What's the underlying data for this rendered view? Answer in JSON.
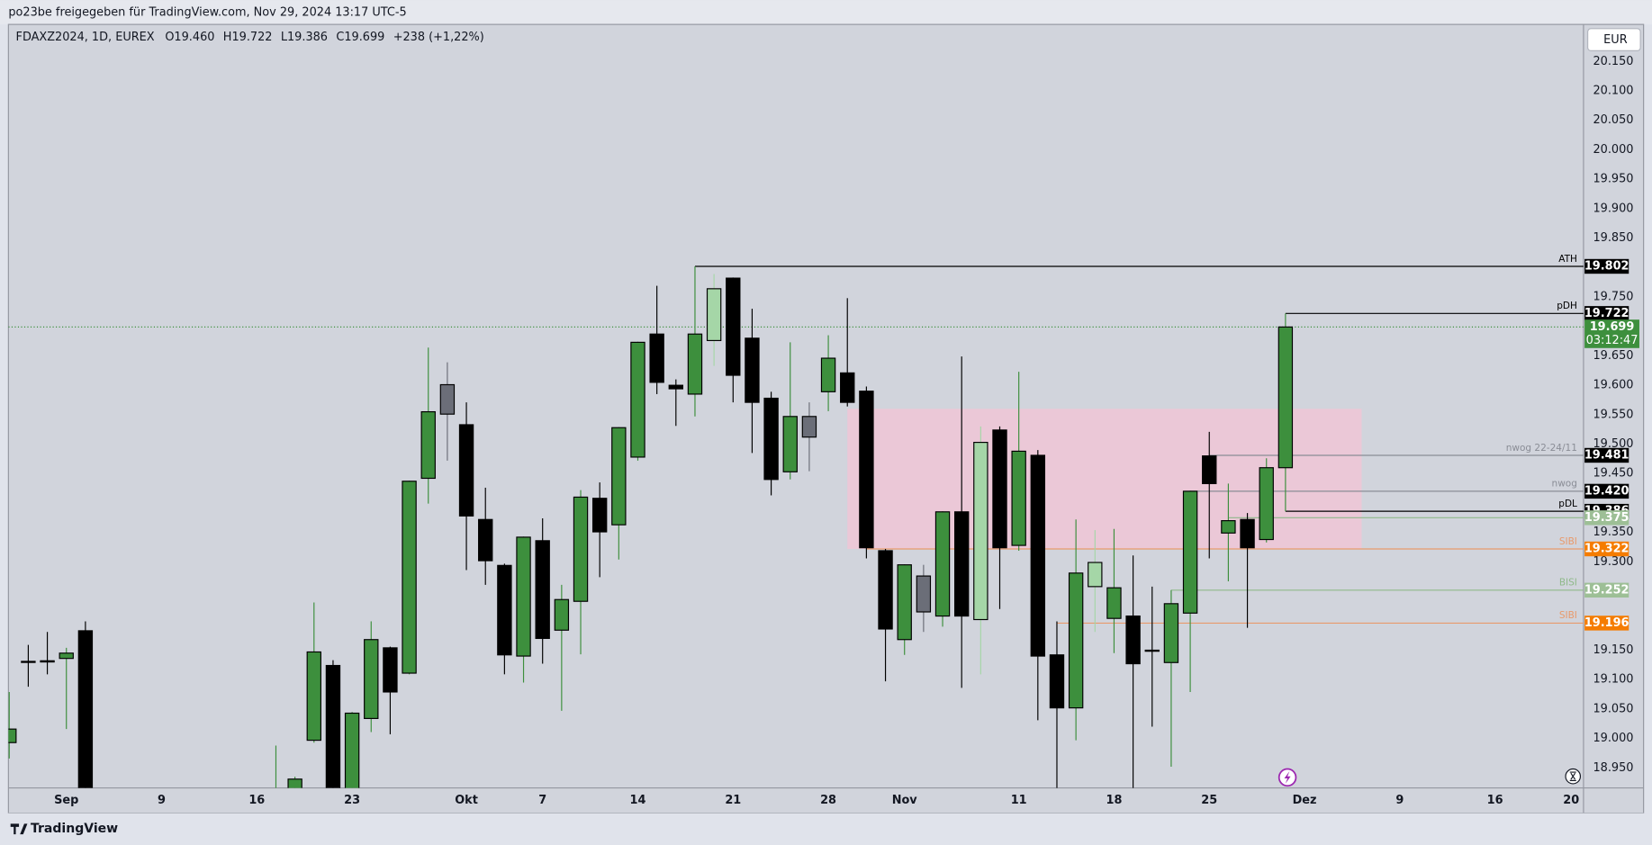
{
  "chart_data": {
    "type": "candlestick",
    "title": "po23be freigegeben für TradingView.com, Nov 29, 2024 13:17 UTC-5",
    "symbol": "FDAXZ2024, 1D, EUREX",
    "legend": [
      "O19.460",
      "H19.722",
      "L19.386",
      "C19.699",
      "+238 (+1,22%)"
    ],
    "currency": "EUR",
    "brand": "TradingView",
    "categories": [
      null,
      null,
      null,
      "Sep",
      null,
      null,
      null,
      null,
      "9",
      null,
      null,
      null,
      null,
      "16",
      null,
      null,
      null,
      null,
      "23",
      null,
      null,
      null,
      null,
      null,
      "Okt",
      null,
      null,
      null,
      "7",
      null,
      null,
      null,
      null,
      "14",
      null,
      null,
      null,
      null,
      "21",
      null,
      null,
      null,
      null,
      "28",
      null,
      null,
      null,
      "Nov",
      null,
      null,
      null,
      null,
      null,
      "11",
      null,
      null,
      null,
      null,
      "18",
      null,
      null,
      null,
      null,
      "25",
      null,
      null,
      null,
      null,
      "Dez",
      null,
      null,
      null,
      null,
      "9",
      null,
      null,
      null,
      null,
      "16",
      null,
      null,
      null,
      "20"
    ],
    "open": [
      18.993,
      19.131,
      19.13,
      19.136,
      19.183,
      null,
      null,
      null,
      null,
      null,
      null,
      null,
      null,
      null,
      18.85,
      18.9,
      18.997,
      19.124,
      18.9,
      19.034,
      19.154,
      19.111,
      19.442,
      19.601,
      19.533,
      19.372,
      19.294,
      19.14,
      19.336,
      19.184,
      19.233,
      19.408,
      19.363,
      19.478,
      19.687,
      19.6,
      19.585,
      19.676,
      19.782,
      19.68,
      19.578,
      19.453,
      19.547,
      19.589,
      19.621,
      19.59,
      19.319,
      19.168,
      19.276,
      19.208,
      19.385,
      19.202,
      19.524,
      19.328,
      19.481,
      19.142,
      19.052,
      19.258,
      19.204,
      19.208,
      19.15,
      19.129,
      19.213,
      19.48,
      19.349,
      19.372,
      19.338,
      19.46,
      null,
      null,
      null,
      null,
      null,
      null,
      null,
      null,
      null,
      null,
      null,
      null,
      null,
      null,
      null
    ],
    "high": [
      19.079,
      19.159,
      19.181,
      19.154,
      19.199,
      null,
      null,
      null,
      null,
      null,
      null,
      null,
      null,
      null,
      18.988,
      18.935,
      19.231,
      19.133,
      19.045,
      19.199,
      19.156,
      19.438,
      19.664,
      19.639,
      19.571,
      19.426,
      19.297,
      19.343,
      19.374,
      19.261,
      19.422,
      19.435,
      19.529,
      19.674,
      19.769,
      19.61,
      19.802,
      19.789,
      19.783,
      19.73,
      19.589,
      19.673,
      19.571,
      19.685,
      19.748,
      19.598,
      19.322,
      19.296,
      19.295,
      19.386,
      19.649,
      19.53,
      19.53,
      19.623,
      19.49,
      19.199,
      19.372,
      19.354,
      19.356,
      19.311,
      19.258,
      19.252,
      19.421,
      19.521,
      19.433,
      19.383,
      19.476,
      19.722,
      null,
      null,
      null,
      null,
      null,
      null,
      null,
      null,
      null,
      null,
      null,
      null,
      null,
      null,
      null
    ],
    "low": [
      18.966,
      19.088,
      19.109,
      19.016,
      18.88,
      null,
      null,
      null,
      null,
      null,
      null,
      null,
      null,
      null,
      18.8,
      18.88,
      18.993,
      18.87,
      18.88,
      19.011,
      19.007,
      19.109,
      19.399,
      19.472,
      19.286,
      19.261,
      19.109,
      19.095,
      19.127,
      19.047,
      19.143,
      19.274,
      19.304,
      19.472,
      19.585,
      19.531,
      19.547,
      19.633,
      19.571,
      19.485,
      19.413,
      19.44,
      19.454,
      19.556,
      19.564,
      19.306,
      19.097,
      19.142,
      19.181,
      19.19,
      19.086,
      19.109,
      19.22,
      19.319,
      19.031,
      18.9,
      18.997,
      19.181,
      19.145,
      18.9,
      19.02,
      18.952,
      19.079,
      19.306,
      19.267,
      19.188,
      19.333,
      19.386,
      null,
      null,
      null,
      null,
      null,
      null,
      null,
      null,
      null,
      null,
      null,
      null,
      null,
      null,
      null
    ],
    "close": [
      19.016,
      19.131,
      19.132,
      19.145,
      18.9,
      null,
      null,
      null,
      null,
      null,
      null,
      null,
      null,
      null,
      18.88,
      18.931,
      19.147,
      18.89,
      19.043,
      19.168,
      19.079,
      19.437,
      19.555,
      19.551,
      19.378,
      19.302,
      19.142,
      19.342,
      19.17,
      19.236,
      19.41,
      19.351,
      19.528,
      19.673,
      19.605,
      19.594,
      19.687,
      19.764,
      19.617,
      19.571,
      19.44,
      19.547,
      19.512,
      19.646,
      19.571,
      19.324,
      19.186,
      19.295,
      19.215,
      19.385,
      19.208,
      19.503,
      19.324,
      19.488,
      19.14,
      19.052,
      19.281,
      19.299,
      19.256,
      19.127,
      19.149,
      19.229,
      19.42,
      19.433,
      19.37,
      19.324,
      19.46,
      19.699,
      null,
      null,
      null,
      null,
      null,
      null,
      null,
      null,
      null,
      null,
      null,
      null,
      null,
      null,
      null
    ],
    "colors": [
      "#3d8f3d",
      "#000000",
      "#000000",
      "#3d8f3d",
      "#000000",
      null,
      null,
      null,
      null,
      null,
      null,
      null,
      null,
      null,
      "#3d8f3d",
      "#3d8f3d",
      "#3d8f3d",
      "#000000",
      "#3d8f3d",
      "#3d8f3d",
      "#000000",
      "#3d8f3d",
      "#3d8f3d",
      "#6b6e78",
      "#000000",
      "#000000",
      "#000000",
      "#3d8f3d",
      "#000000",
      "#3d8f3d",
      "#3d8f3d",
      "#000000",
      "#3d8f3d",
      "#3d8f3d",
      "#000000",
      "#000000",
      "#3d8f3d",
      "#a5d6a7",
      "#000000",
      "#000000",
      "#000000",
      "#3d8f3d",
      "#6b6e78",
      "#3d8f3d",
      "#000000",
      "#000000",
      "#000000",
      "#3d8f3d",
      "#6b6e78",
      "#3d8f3d",
      "#000000",
      "#a5d6a7",
      "#000000",
      "#3d8f3d",
      "#000000",
      "#000000",
      "#3d8f3d",
      "#a5d6a7",
      "#3d8f3d",
      "#000000",
      "#000000",
      "#3d8f3d",
      "#3d8f3d",
      "#000000",
      "#3d8f3d",
      "#000000",
      "#3d8f3d",
      "#3d8f3d",
      null,
      null,
      null,
      null,
      null,
      null,
      null,
      null,
      null,
      null,
      null,
      null,
      null,
      null,
      null
    ],
    "ylim": [
      18.916,
      20.213
    ],
    "yticks": [
      {
        "value": 20.15,
        "label": "20.150"
      },
      {
        "value": 20.1,
        "label": "20.100"
      },
      {
        "value": 20.05,
        "label": "20.050"
      },
      {
        "value": 20.0,
        "label": "20.000"
      },
      {
        "value": 19.95,
        "label": "19.950"
      },
      {
        "value": 19.9,
        "label": "19.900"
      },
      {
        "value": 19.85,
        "label": "19.850"
      },
      {
        "value": 19.75,
        "label": "19.750"
      },
      {
        "value": 19.65,
        "label": "19.650"
      },
      {
        "value": 19.6,
        "label": "19.600"
      },
      {
        "value": 19.55,
        "label": "19.550"
      },
      {
        "value": 19.5,
        "label": "19.500"
      },
      {
        "value": 19.45,
        "label": "19.450"
      },
      {
        "value": 19.35,
        "label": "19.350"
      },
      {
        "value": 19.3,
        "label": "19.300"
      },
      {
        "value": 19.15,
        "label": "19.150"
      },
      {
        "value": 19.1,
        "label": "19.100"
      },
      {
        "value": 19.05,
        "label": "19.050"
      },
      {
        "value": 19.0,
        "label": "19.000"
      },
      {
        "value": 18.95,
        "label": "18.950"
      }
    ],
    "zone": {
      "top": 19.56,
      "bottom": 19.322,
      "color": "#f0c6d6"
    },
    "current": {
      "value": 19.699,
      "value_label": "19.699",
      "countdown": "03:12:47",
      "color": "#3d8f3d"
    },
    "levels": [
      {
        "name": "ATH",
        "value": 19.802,
        "value_label": "19.802",
        "color": "#000000",
        "box_color": "#000000"
      },
      {
        "name": "pDH",
        "value": 19.722,
        "value_label": "19.722",
        "color": "#000000",
        "box_color": "#000000"
      },
      {
        "name": "nwog 22-24/11",
        "value": 19.481,
        "value_label": "19.481",
        "color": "#8a8d96",
        "box_color": "#000000"
      },
      {
        "name": "nwog",
        "value": 19.42,
        "value_label": "19.420",
        "color": "#8a8d96",
        "box_color": "#000000"
      },
      {
        "name": "pDL",
        "value": 19.386,
        "value_label": "19.386",
        "color": "#000000",
        "box_color": "#000000"
      },
      {
        "value": 19.375,
        "value_label": "19.375",
        "color": "#8fb98a",
        "box_color": "#9dbf96"
      },
      {
        "name": "SIBI",
        "value": 19.322,
        "value_label": "19.322",
        "color": "#e89a6c",
        "box_color": "#f57c00"
      },
      {
        "name": "BISI",
        "value": 19.252,
        "value_label": "19.252",
        "color": "#8fb98a",
        "box_color": "#9dbf96"
      },
      {
        "name": "SIBI",
        "value": 19.196,
        "value_label": "19.196",
        "color": "#e89a6c",
        "box_color": "#f57c00"
      }
    ]
  }
}
